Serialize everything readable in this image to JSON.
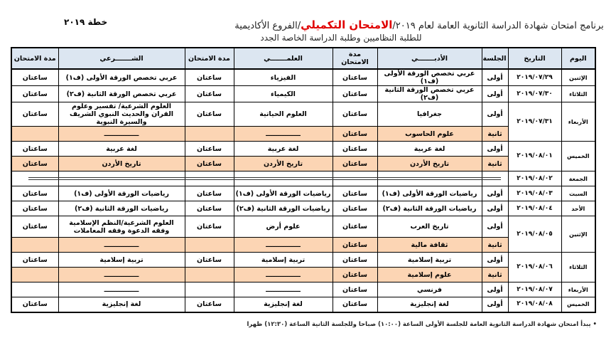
{
  "header": {
    "title_prefix": "برنامج امتحان شهادة الدراسة الثانوية العامة لعام ٢٠١٩/",
    "title_highlight": "الامتحان التكميلي",
    "title_suffix": "/الفروع الأكاديمية",
    "subtitle": "للطلبة النظاميين وطلبة الدراسة الخاصة الجدد",
    "plan": "خطة ٢٠١٩",
    "highlight_color": "#e00000"
  },
  "columns": {
    "day": "اليوم",
    "date": "التاريخ",
    "session": "الجلسة",
    "literary": "الأدبـــــــي",
    "duration": "مدة الامتحان",
    "scientific": "العلمـــــــي",
    "sharia": "الشـــــــرعي"
  },
  "colors": {
    "header_bg": "#dce6f1",
    "second_session_bg": "#fcd5b4"
  },
  "days": [
    {
      "day": "الإثنين",
      "date": "٢٠١٩/٠٧/٢٩",
      "sessions": [
        {
          "session": "أولى",
          "literary": "عربي تخصص الورقة الأولى (ف١)",
          "literary_dur": "ساعتان",
          "scientific": "الفيزياء",
          "scientific_dur": "ساعتان",
          "sharia": "عربي تخصص الورقة الأولى (ف١)",
          "sharia_dur": "ساعتان"
        }
      ]
    },
    {
      "day": "الثلاثاء",
      "date": "٢٠١٩/٠٧/٣٠",
      "sessions": [
        {
          "session": "أولى",
          "literary": "عربي تخصص الورقة الثانية (ف٢)",
          "literary_dur": "ساعتان",
          "scientific": "الكيمياء",
          "scientific_dur": "ساعتان",
          "sharia": "عربي تخصص الورقة الثانية (ف٢)",
          "sharia_dur": "ساعتان"
        }
      ]
    },
    {
      "day": "الأربعاء",
      "date": "٢٠١٩/٠٧/٣١",
      "sessions": [
        {
          "session": "أولى",
          "literary": "جغرافيا",
          "literary_dur": "ساعتان",
          "scientific": "العلوم الحياتية",
          "scientific_dur": "ساعتان",
          "sharia": "العلوم الشرعية/ تفسير وعلوم القران والحديث النبوي الشريف والسيرة النبوية",
          "sharia_dur": "ساعتان"
        },
        {
          "session": "ثانية",
          "literary": "علوم الحاسوب",
          "literary_dur": "ساعتان",
          "scientific": "ـــــــــــــــ",
          "scientific_dur": "",
          "sharia": "ـــــــــــــــ",
          "sharia_dur": ""
        }
      ]
    },
    {
      "day": "الخميس",
      "date": "٢٠١٩/٠٨/٠١",
      "sessions": [
        {
          "session": "أولى",
          "literary": "لغة عربية",
          "literary_dur": "ساعتان",
          "scientific": "لغة عربية",
          "scientific_dur": "ساعتان",
          "sharia": "لغة عربية",
          "sharia_dur": "ساعتان"
        },
        {
          "session": "ثانية",
          "literary": "تاريخ الأردن",
          "literary_dur": "ساعتان",
          "scientific": "تاريخ الأردن",
          "scientific_dur": "ساعتان",
          "sharia": "تاريخ الأردن",
          "sharia_dur": "ساعتان"
        }
      ]
    },
    {
      "day": "الجمعة",
      "date": "٢٠١٩/٠٨/٠٢",
      "sessions": [
        {
          "session": "",
          "literary": "",
          "literary_dur": "",
          "scientific": "",
          "scientific_dur": "",
          "sharia": "",
          "sharia_dur": ""
        }
      ]
    },
    {
      "day": "السبت",
      "date": "٢٠١٩/٠٨/٠٣",
      "sessions": [
        {
          "session": "أولى",
          "literary": "رياضيات الورقة الأولى (ف١)",
          "literary_dur": "ساعتان",
          "scientific": "رياضيات الورقة الأولى (ف١)",
          "scientific_dur": "ساعتان",
          "sharia": "رياضيات الورقة الأولى (ف١)",
          "sharia_dur": "ساعتان"
        }
      ]
    },
    {
      "day": "الأحد",
      "date": "٢٠١٩/٠٨/٠٤",
      "sessions": [
        {
          "session": "أولى",
          "literary": "رياضيات الورقة الثانية (ف٢)",
          "literary_dur": "ساعتان",
          "scientific": "رياضيات الورقة الثانية (ف٢)",
          "scientific_dur": "ساعتان",
          "sharia": "رياضيات الورقة الثانية (ف٢)",
          "sharia_dur": "ساعتان"
        }
      ]
    },
    {
      "day": "الإثنين",
      "date": "٢٠١٩/٠٨/٠٥",
      "sessions": [
        {
          "session": "أولى",
          "literary": "تاريخ العرب",
          "literary_dur": "ساعتان",
          "scientific": "علوم أرض",
          "scientific_dur": "ساعتان",
          "sharia": "العلوم الشرعية/النظم الإسلامية وفقه الدعوة وفقه المعاملات",
          "sharia_dur": "ساعتان"
        },
        {
          "session": "ثانية",
          "literary": "ثقافة مالية",
          "literary_dur": "ساعتان",
          "scientific": "ـــــــــــــــ",
          "scientific_dur": "",
          "sharia": "ـــــــــــــــ",
          "sharia_dur": ""
        }
      ]
    },
    {
      "day": "الثلاثاء",
      "date": "٢٠١٩/٠٨/٠٦",
      "sessions": [
        {
          "session": "أولى",
          "literary": "تربية إسلامية",
          "literary_dur": "ساعتان",
          "scientific": "تربية إسلامية",
          "scientific_dur": "ساعتان",
          "sharia": "تربية إسلامية",
          "sharia_dur": "ساعتان"
        },
        {
          "session": "ثانية",
          "literary": "علوم إسلامية",
          "literary_dur": "ساعتان",
          "scientific": "ـــــــــــــــ",
          "scientific_dur": "",
          "sharia": "ـــــــــــــــ",
          "sharia_dur": ""
        }
      ]
    },
    {
      "day": "الأربعاء",
      "date": "٢٠١٩/٠٨/٠٧",
      "sessions": [
        {
          "session": "أولى",
          "literary": "فرنسي",
          "literary_dur": "ساعتان",
          "scientific": "ـــــــــــــــ",
          "scientific_dur": "",
          "sharia": "ـــــــــــــــ",
          "sharia_dur": ""
        }
      ]
    },
    {
      "day": "الخميس",
      "date": "٢٠١٩/٠٨/٠٨",
      "sessions": [
        {
          "session": "أولى",
          "literary": "لغة إنجليزية",
          "literary_dur": "ساعتان",
          "scientific": "لغة إنجليزية",
          "scientific_dur": "ساعتان",
          "sharia": "لغة إنجليزية",
          "sharia_dur": "ساعتان"
        }
      ]
    }
  ],
  "note": "• يبدأ امتحان شهادة الدراسة الثانوية العامة للجلسة الأولى الساعة (١٠:٠٠) صباحا وللجلسة الثانية الساعة (١٢:٣٠) ظهرا"
}
